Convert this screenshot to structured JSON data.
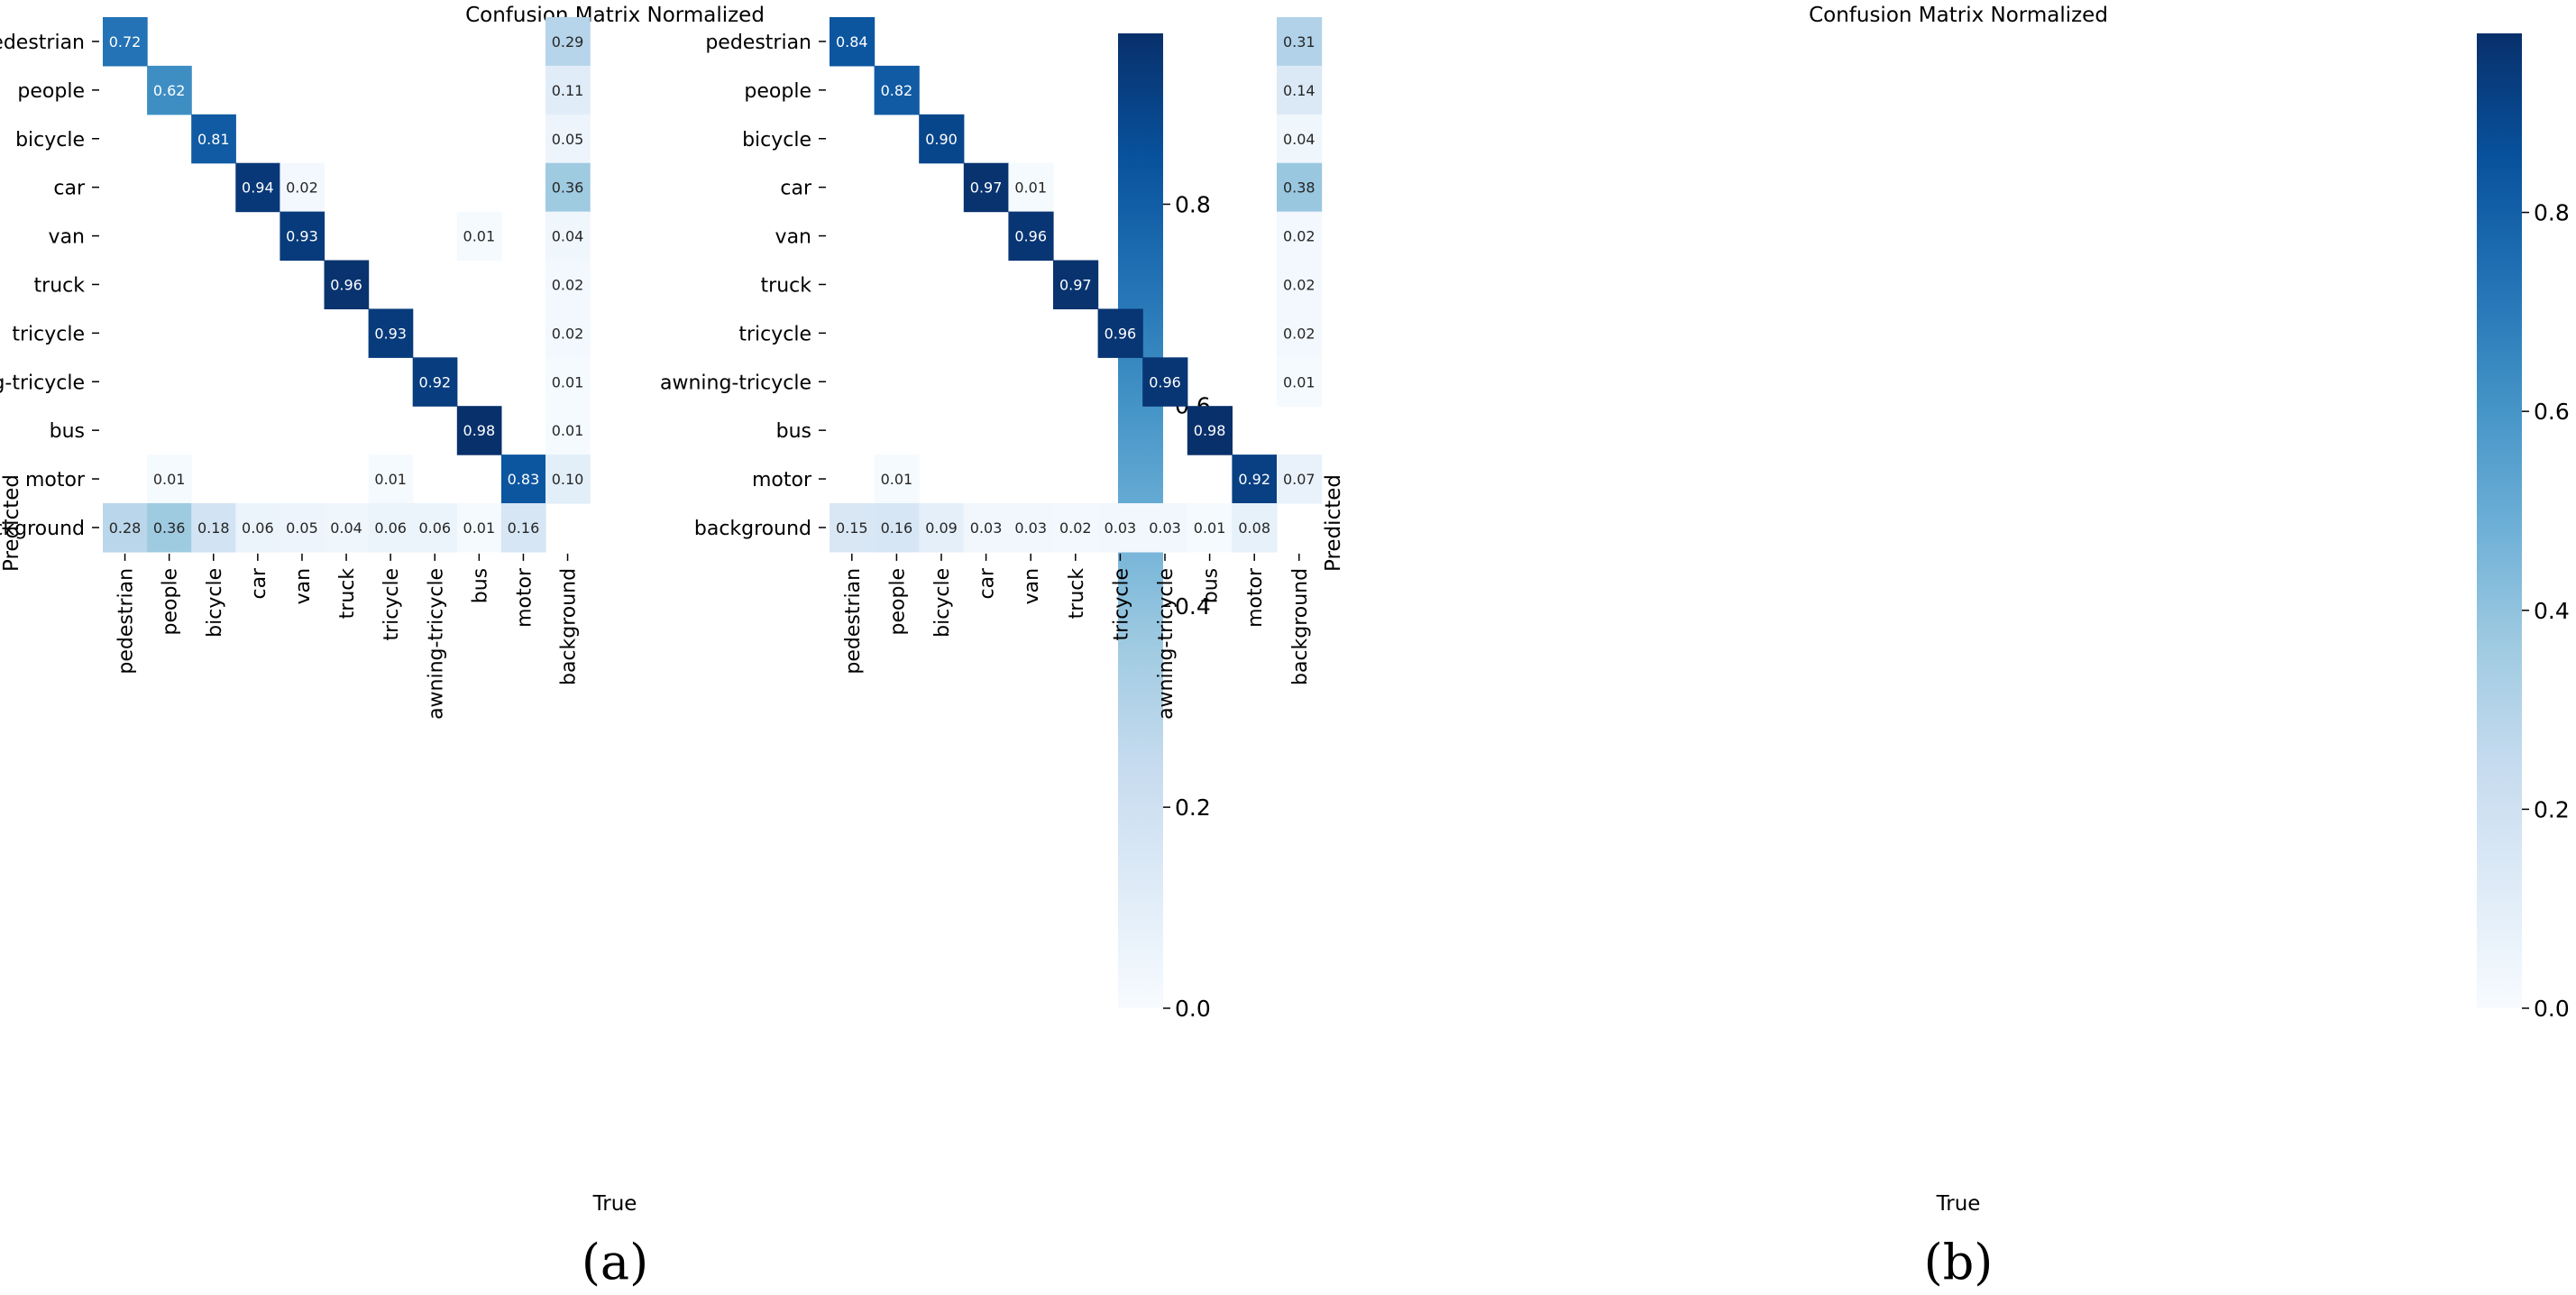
{
  "chart_data": [
    {
      "type": "heatmap",
      "panel_label": "(a)",
      "title": "Confusion Matrix Normalized",
      "xlabel": "True",
      "ylabel": "Predicted",
      "x_categories": [
        "pedestrian",
        "people",
        "bicycle",
        "car",
        "van",
        "truck",
        "tricycle",
        "awning-tricycle",
        "bus",
        "motor",
        "background"
      ],
      "y_categories": [
        "pedestrian",
        "people",
        "bicycle",
        "car",
        "van",
        "truck",
        "tricycle",
        "awning-tricycle",
        "bus",
        "motor",
        "background"
      ],
      "colorbar": {
        "range": [
          0.0,
          0.97
        ],
        "ticks": [
          0.0,
          0.2,
          0.4,
          0.6,
          0.8
        ],
        "tick_labels": [
          "0.0",
          "0.2",
          "0.4",
          "0.6",
          "0.8"
        ],
        "colormap": "Blues"
      },
      "values": [
        [
          0.72,
          null,
          null,
          null,
          null,
          null,
          null,
          null,
          null,
          null,
          0.29
        ],
        [
          null,
          0.62,
          null,
          null,
          null,
          null,
          null,
          null,
          null,
          null,
          0.11
        ],
        [
          null,
          null,
          0.81,
          null,
          null,
          null,
          null,
          null,
          null,
          null,
          0.05
        ],
        [
          null,
          null,
          null,
          0.94,
          0.02,
          null,
          null,
          null,
          null,
          null,
          0.36
        ],
        [
          null,
          null,
          null,
          null,
          0.93,
          null,
          null,
          null,
          0.01,
          null,
          0.04
        ],
        [
          null,
          null,
          null,
          null,
          null,
          0.96,
          null,
          null,
          null,
          null,
          0.02
        ],
        [
          null,
          null,
          null,
          null,
          null,
          null,
          0.93,
          null,
          null,
          null,
          0.02
        ],
        [
          null,
          null,
          null,
          null,
          null,
          null,
          null,
          0.92,
          null,
          null,
          0.01
        ],
        [
          null,
          null,
          null,
          null,
          null,
          null,
          null,
          null,
          0.98,
          null,
          0.01
        ],
        [
          null,
          0.01,
          null,
          null,
          null,
          null,
          0.01,
          null,
          null,
          0.83,
          0.1
        ],
        [
          0.28,
          0.36,
          0.18,
          0.06,
          0.05,
          0.04,
          0.06,
          0.06,
          0.01,
          0.16,
          null
        ]
      ]
    },
    {
      "type": "heatmap",
      "panel_label": "(b)",
      "title": "Confusion Matrix Normalized",
      "xlabel": "True",
      "ylabel": "Predicted",
      "x_categories": [
        "pedestrian",
        "people",
        "bicycle",
        "car",
        "van",
        "truck",
        "tricycle",
        "awning-tricycle",
        "bus",
        "motor",
        "background"
      ],
      "y_categories": [
        "pedestrian",
        "people",
        "bicycle",
        "car",
        "van",
        "truck",
        "tricycle",
        "awning-tricycle",
        "bus",
        "motor",
        "background"
      ],
      "colorbar": {
        "range": [
          0.0,
          0.98
        ],
        "ticks": [
          0.0,
          0.2,
          0.4,
          0.6,
          0.8
        ],
        "tick_labels": [
          "0.0",
          "0.2",
          "0.4",
          "0.6",
          "0.8"
        ],
        "colormap": "Blues"
      },
      "values": [
        [
          0.84,
          null,
          null,
          null,
          null,
          null,
          null,
          null,
          null,
          null,
          0.31
        ],
        [
          null,
          0.82,
          null,
          null,
          null,
          null,
          null,
          null,
          null,
          null,
          0.14
        ],
        [
          null,
          null,
          0.9,
          null,
          null,
          null,
          null,
          null,
          null,
          null,
          0.04
        ],
        [
          null,
          null,
          null,
          0.97,
          0.01,
          null,
          null,
          null,
          null,
          null,
          0.38
        ],
        [
          null,
          null,
          null,
          null,
          0.96,
          null,
          null,
          null,
          null,
          null,
          0.02
        ],
        [
          null,
          null,
          null,
          null,
          null,
          0.97,
          null,
          null,
          null,
          null,
          0.02
        ],
        [
          null,
          null,
          null,
          null,
          null,
          null,
          0.96,
          null,
          null,
          null,
          0.02
        ],
        [
          null,
          null,
          null,
          null,
          null,
          null,
          null,
          0.96,
          null,
          null,
          0.01
        ],
        [
          null,
          null,
          null,
          null,
          null,
          null,
          null,
          null,
          0.98,
          null,
          null
        ],
        [
          null,
          0.01,
          null,
          null,
          null,
          null,
          null,
          null,
          null,
          0.92,
          0.07
        ],
        [
          0.15,
          0.16,
          0.09,
          0.03,
          0.03,
          0.02,
          0.03,
          0.03,
          0.01,
          0.08,
          null
        ]
      ]
    }
  ]
}
